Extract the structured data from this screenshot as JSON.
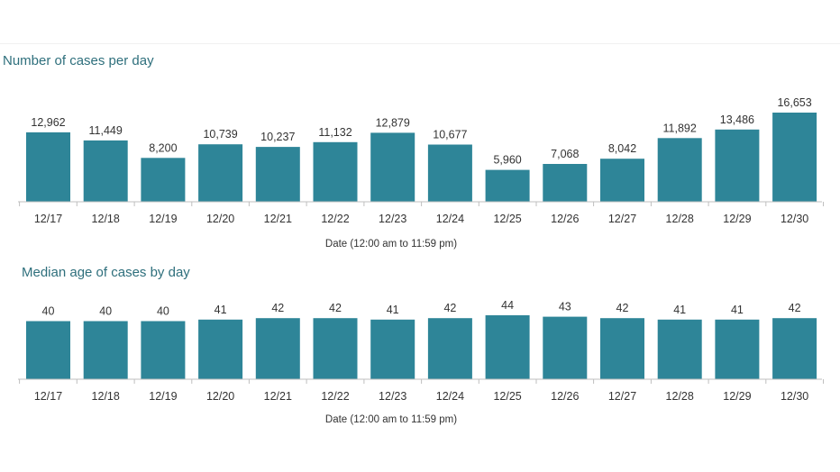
{
  "chart_data": [
    {
      "type": "bar",
      "title": "Number of cases per day",
      "xlabel": "Date (12:00 am to 11:59 pm)",
      "ylabel": "",
      "categories": [
        "12/17",
        "12/18",
        "12/19",
        "12/20",
        "12/21",
        "12/22",
        "12/23",
        "12/24",
        "12/25",
        "12/26",
        "12/27",
        "12/28",
        "12/29",
        "12/30"
      ],
      "values": [
        12962,
        11449,
        8200,
        10739,
        10237,
        11132,
        12879,
        10677,
        5960,
        7068,
        8042,
        11892,
        13486,
        16653
      ],
      "value_labels": [
        "12,962",
        "11,449",
        "8,200",
        "10,739",
        "10,237",
        "11,132",
        "12,879",
        "10,677",
        "5,960",
        "7,068",
        "8,042",
        "11,892",
        "13,486",
        "16,653"
      ],
      "ylim": [
        0,
        16653
      ],
      "grid": false,
      "color": "#2e8598"
    },
    {
      "type": "bar",
      "title": "Median age of cases by day",
      "xlabel": "Date (12:00 am to 11:59 pm)",
      "ylabel": "",
      "categories": [
        "12/17",
        "12/18",
        "12/19",
        "12/20",
        "12/21",
        "12/22",
        "12/23",
        "12/24",
        "12/25",
        "12/26",
        "12/27",
        "12/28",
        "12/29",
        "12/30"
      ],
      "values": [
        40,
        40,
        40,
        41,
        42,
        42,
        41,
        42,
        44,
        43,
        42,
        41,
        41,
        42
      ],
      "value_labels": [
        "40",
        "40",
        "40",
        "41",
        "42",
        "42",
        "41",
        "42",
        "44",
        "43",
        "42",
        "41",
        "41",
        "42"
      ],
      "ylim": [
        0,
        44
      ],
      "grid": false,
      "color": "#2e8598"
    }
  ],
  "colors": {
    "bar": "#2e8598",
    "title": "#2e6f7c",
    "text": "#333333",
    "axis": "#bfbfbf"
  }
}
